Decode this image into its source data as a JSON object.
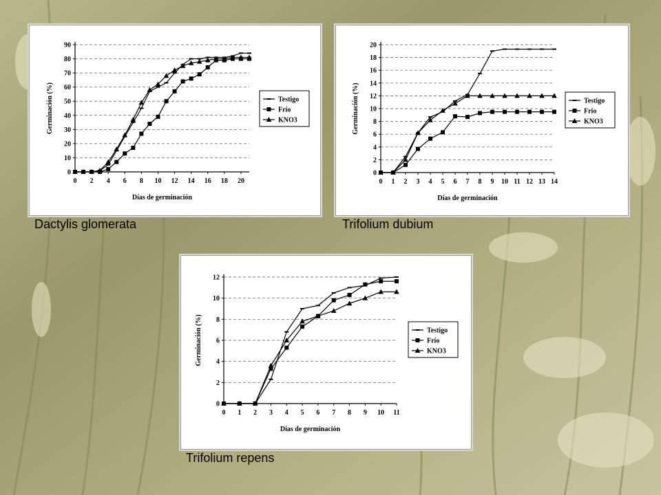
{
  "background": {
    "colors": [
      "#b7b487",
      "#8f8c5e",
      "#c9c6a0",
      "#6f7a4a"
    ]
  },
  "captions": [
    "Dactylis glomerata",
    "Trifolium dubium",
    "Trifolium repens"
  ],
  "chart_data": [
    {
      "type": "line",
      "title": "",
      "xlabel": "Días de germinación",
      "ylabel": "Germinación (%)",
      "xlim": [
        0,
        21
      ],
      "ylim": [
        0,
        90
      ],
      "xticks": [
        0,
        2,
        4,
        6,
        8,
        10,
        12,
        14,
        16,
        18,
        20
      ],
      "yticks": [
        0,
        10,
        20,
        30,
        40,
        50,
        60,
        70,
        80,
        90
      ],
      "grid": true,
      "legend_position": "right",
      "series": [
        {
          "name": "Testigo",
          "marker": "dash",
          "x": [
            0,
            1,
            2,
            3,
            4,
            5,
            6,
            7,
            8,
            9,
            10,
            11,
            12,
            13,
            14,
            15,
            16,
            17,
            18,
            19,
            20,
            21
          ],
          "y": [
            0,
            0,
            0,
            1,
            5,
            15,
            25,
            35,
            45,
            57,
            60,
            63,
            70,
            76,
            80,
            80,
            81,
            81,
            81,
            82,
            84,
            84
          ]
        },
        {
          "name": "Frío",
          "marker": "square",
          "x": [
            0,
            1,
            2,
            3,
            4,
            5,
            6,
            7,
            8,
            9,
            10,
            11,
            12,
            13,
            14,
            15,
            16,
            17,
            18,
            19,
            20,
            21
          ],
          "y": [
            0,
            0,
            0,
            0,
            2,
            7,
            13,
            17,
            27,
            34,
            39,
            50,
            57,
            64,
            66,
            69,
            74,
            79,
            79,
            80,
            80,
            80
          ]
        },
        {
          "name": "KNO3",
          "marker": "triangle",
          "x": [
            0,
            1,
            2,
            3,
            4,
            5,
            6,
            7,
            8,
            9,
            10,
            11,
            12,
            13,
            14,
            15,
            16,
            17,
            18,
            19,
            20,
            21
          ],
          "y": [
            0,
            0,
            0,
            1,
            7,
            16,
            26,
            37,
            49,
            58,
            62,
            68,
            72,
            75,
            77,
            78,
            79,
            80,
            80,
            81,
            81,
            81
          ]
        }
      ]
    },
    {
      "type": "line",
      "title": "",
      "xlabel": "Días de germinación",
      "ylabel": "Germinación (%)",
      "xlim": [
        0,
        14
      ],
      "ylim": [
        0,
        20
      ],
      "xticks": [
        0,
        1,
        2,
        3,
        4,
        5,
        6,
        7,
        8,
        9,
        10,
        11,
        12,
        13,
        14
      ],
      "yticks": [
        0,
        2,
        4,
        6,
        8,
        10,
        12,
        14,
        16,
        18,
        20
      ],
      "grid": true,
      "legend_position": "right",
      "series": [
        {
          "name": "Testigo",
          "marker": "dash",
          "x": [
            0,
            1,
            2,
            3,
            4,
            5,
            6,
            7,
            8,
            9,
            10,
            11,
            12,
            13,
            14
          ],
          "y": [
            0,
            0,
            2.5,
            6.2,
            8.7,
            9.5,
            11.2,
            12.2,
            15.5,
            19,
            19.3,
            19.3,
            19.3,
            19.3,
            19.3
          ]
        },
        {
          "name": "Frío",
          "marker": "square",
          "x": [
            0,
            1,
            2,
            3,
            4,
            5,
            6,
            7,
            8,
            9,
            10,
            11,
            12,
            13,
            14
          ],
          "y": [
            0,
            0,
            1.2,
            3.7,
            5.3,
            6.3,
            8.8,
            8.7,
            9.3,
            9.5,
            9.5,
            9.5,
            9.5,
            9.5,
            9.5
          ]
        },
        {
          "name": "KNO3",
          "marker": "triangle",
          "x": [
            0,
            1,
            2,
            3,
            4,
            5,
            6,
            7,
            8,
            9,
            10,
            11,
            12,
            13,
            14
          ],
          "y": [
            0,
            0,
            2,
            6.2,
            8.2,
            9.7,
            10.8,
            12,
            12,
            12,
            12,
            12,
            12,
            12,
            12
          ]
        }
      ]
    },
    {
      "type": "line",
      "title": "",
      "xlabel": "Días de germinación",
      "ylabel": "Germinación (%)",
      "xlim": [
        0,
        11
      ],
      "ylim": [
        0,
        12
      ],
      "xticks": [
        0,
        1,
        2,
        3,
        4,
        5,
        6,
        7,
        8,
        9,
        10,
        11
      ],
      "yticks": [
        0,
        2,
        4,
        6,
        8,
        10,
        12
      ],
      "grid": true,
      "legend_position": "right",
      "series": [
        {
          "name": "Testigo",
          "marker": "dash",
          "x": [
            0,
            1,
            2,
            3,
            4,
            5,
            6,
            7,
            8,
            9,
            10,
            11
          ],
          "y": [
            0,
            0,
            0,
            2.3,
            6.8,
            9,
            9.3,
            10.5,
            11,
            11.2,
            11.9,
            12
          ]
        },
        {
          "name": "Frío",
          "marker": "square",
          "x": [
            0,
            1,
            2,
            3,
            4,
            5,
            6,
            7,
            8,
            9,
            10,
            11
          ],
          "y": [
            0,
            0,
            0,
            3.3,
            5.3,
            7.3,
            8.3,
            9.8,
            10.3,
            11.3,
            11.6,
            11.6
          ]
        },
        {
          "name": "KNO3",
          "marker": "triangle",
          "x": [
            0,
            1,
            2,
            3,
            4,
            5,
            6,
            7,
            8,
            9,
            10,
            11
          ],
          "y": [
            0,
            0,
            0,
            3.6,
            6,
            7.8,
            8.3,
            8.8,
            9.5,
            10,
            10.6,
            10.6
          ]
        }
      ]
    }
  ]
}
